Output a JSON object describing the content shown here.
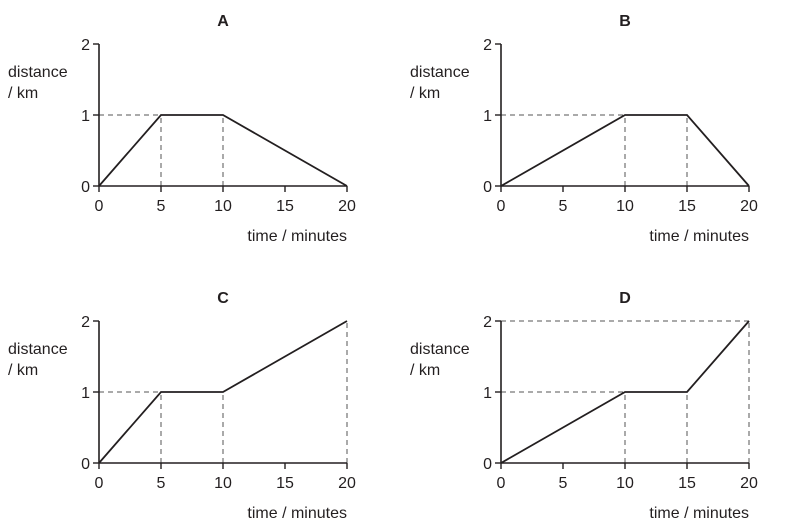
{
  "chart_data": [
    {
      "type": "line",
      "title": "A",
      "xlabel": "time / minutes",
      "ylabel": [
        "distance",
        "/ km"
      ],
      "xlim": [
        0,
        20
      ],
      "ylim": [
        0,
        2
      ],
      "xticks": [
        "0",
        "5",
        "10",
        "15",
        "20"
      ],
      "yticks": [
        "0",
        "1",
        "2"
      ],
      "x": [
        0,
        5,
        10,
        20
      ],
      "y": [
        0,
        1,
        1,
        0
      ],
      "guides": [
        [
          0,
          1,
          5,
          1
        ],
        [
          5,
          0,
          5,
          1
        ],
        [
          10,
          0,
          10,
          1
        ]
      ],
      "grid": false
    },
    {
      "type": "line",
      "title": "B",
      "xlabel": "time / minutes",
      "ylabel": [
        "distance",
        "/ km"
      ],
      "xlim": [
        0,
        20
      ],
      "ylim": [
        0,
        2
      ],
      "xticks": [
        "0",
        "5",
        "10",
        "15",
        "20"
      ],
      "yticks": [
        "0",
        "1",
        "2"
      ],
      "x": [
        0,
        10,
        15,
        20
      ],
      "y": [
        0,
        1,
        1,
        0
      ],
      "guides": [
        [
          0,
          1,
          10,
          1
        ],
        [
          10,
          0,
          10,
          1
        ],
        [
          15,
          0,
          15,
          1
        ]
      ],
      "grid": false
    },
    {
      "type": "line",
      "title": "C",
      "xlabel": "time / minutes",
      "ylabel": [
        "distance",
        "/ km"
      ],
      "xlim": [
        0,
        20
      ],
      "ylim": [
        0,
        2
      ],
      "xticks": [
        "0",
        "5",
        "10",
        "15",
        "20"
      ],
      "yticks": [
        "0",
        "1",
        "2"
      ],
      "x": [
        0,
        5,
        10,
        20
      ],
      "y": [
        0,
        1,
        1,
        2
      ],
      "guides": [
        [
          0,
          1,
          5,
          1
        ],
        [
          5,
          0,
          5,
          1
        ],
        [
          10,
          0,
          10,
          1
        ],
        [
          20,
          0,
          20,
          2
        ]
      ],
      "grid": false
    },
    {
      "type": "line",
      "title": "D",
      "xlabel": "time / minutes",
      "ylabel": [
        "distance",
        "/ km"
      ],
      "xlim": [
        0,
        20
      ],
      "ylim": [
        0,
        2
      ],
      "xticks": [
        "0",
        "5",
        "10",
        "15",
        "20"
      ],
      "yticks": [
        "0",
        "1",
        "2"
      ],
      "x": [
        0,
        10,
        15,
        20
      ],
      "y": [
        0,
        1,
        1,
        2
      ],
      "guides": [
        [
          0,
          1,
          10,
          1
        ],
        [
          0,
          2,
          20,
          2
        ],
        [
          10,
          0,
          10,
          1
        ],
        [
          15,
          0,
          15,
          1
        ],
        [
          20,
          0,
          20,
          2
        ]
      ],
      "grid": false
    }
  ]
}
